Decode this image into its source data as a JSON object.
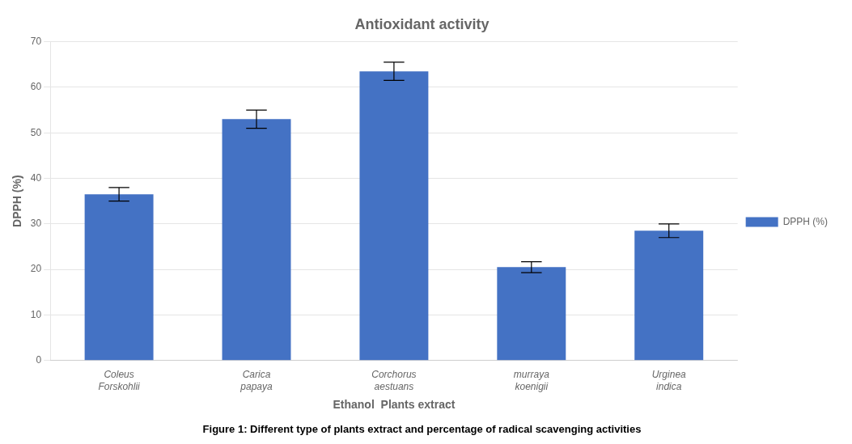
{
  "chart_data": {
    "type": "bar",
    "title": "Antioxidant activity",
    "xlabel": "Ethanol  Plants extract",
    "ylabel": "DPPH (%)",
    "caption": "Figure 1: Different type of plants extract and percentage of radical scavenging activities",
    "categories": [
      "Coleus\nForskohlii",
      "Carica\npapaya",
      "Corchorus\naestuans",
      "murraya\nkoenigii",
      "Urginea\nindica"
    ],
    "series": [
      {
        "name": "DPPH (%)",
        "color": "#4472C4",
        "values": [
          36.5,
          53.0,
          63.5,
          20.5,
          28.5
        ],
        "errors": [
          1.5,
          2.0,
          2.0,
          1.2,
          1.5
        ]
      }
    ],
    "ylim": [
      0,
      70
    ],
    "yticks": [
      0,
      10,
      20,
      30,
      40,
      50,
      60,
      70
    ],
    "grid": true,
    "legend": "right"
  }
}
